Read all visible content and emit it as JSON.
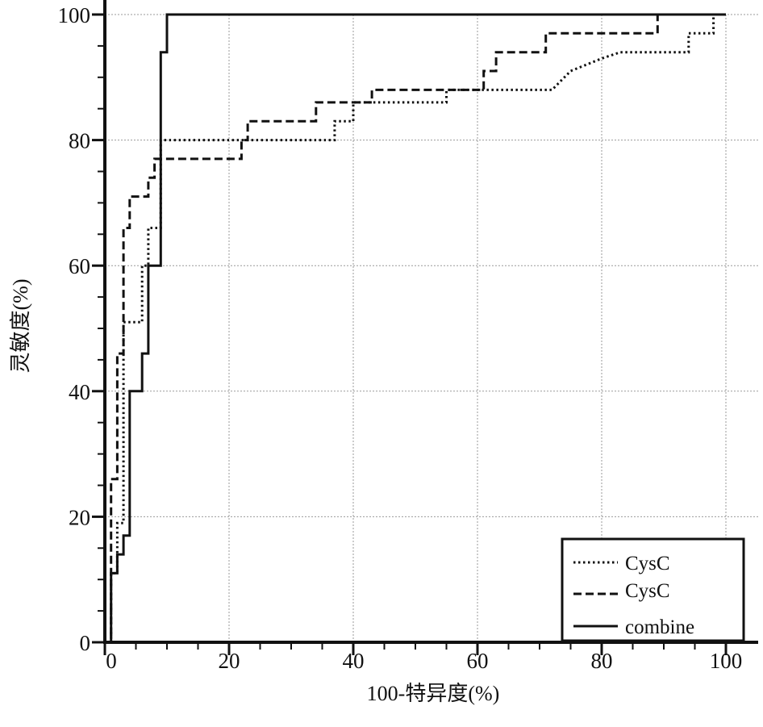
{
  "chart_data": {
    "type": "line",
    "xlabel": "100-特异度(%)",
    "ylabel": "灵敏度(%)",
    "xlim": [
      0,
      100
    ],
    "ylim": [
      0,
      100
    ],
    "x_ticks": [
      "0",
      "20",
      "40",
      "60",
      "80",
      "100"
    ],
    "y_ticks": [
      "0",
      "20",
      "40",
      "60",
      "80",
      "100"
    ],
    "grid": true,
    "legend_position": "bottom-right",
    "series": [
      {
        "name": "CysC",
        "line_style": "dotted",
        "points": [
          [
            0,
            0
          ],
          [
            1,
            0
          ],
          [
            1,
            11
          ],
          [
            2,
            11
          ],
          [
            2,
            19
          ],
          [
            3,
            19
          ],
          [
            3,
            20
          ],
          [
            3,
            51
          ],
          [
            6,
            51
          ],
          [
            6,
            60
          ],
          [
            7,
            60
          ],
          [
            7,
            66
          ],
          [
            9,
            66
          ],
          [
            9,
            80
          ],
          [
            37,
            80
          ],
          [
            37,
            83
          ],
          [
            40,
            83
          ],
          [
            40,
            86
          ],
          [
            55,
            86
          ],
          [
            55,
            88
          ],
          [
            72,
            88
          ],
          [
            75,
            91
          ],
          [
            80,
            93
          ],
          [
            83,
            94
          ],
          [
            94,
            94
          ],
          [
            94,
            97
          ],
          [
            98,
            97
          ],
          [
            98,
            100
          ],
          [
            100,
            100
          ]
        ]
      },
      {
        "name": "CysC",
        "line_style": "dashed",
        "points": [
          [
            0,
            0
          ],
          [
            1,
            0
          ],
          [
            1,
            26
          ],
          [
            2,
            26
          ],
          [
            2,
            46
          ],
          [
            3,
            46
          ],
          [
            3,
            66
          ],
          [
            4,
            66
          ],
          [
            4,
            71
          ],
          [
            7,
            71
          ],
          [
            7,
            74
          ],
          [
            8,
            74
          ],
          [
            8,
            77
          ],
          [
            22,
            77
          ],
          [
            22,
            80
          ],
          [
            23,
            80
          ],
          [
            23,
            83
          ],
          [
            34,
            83
          ],
          [
            34,
            86
          ],
          [
            43,
            86
          ],
          [
            43,
            88
          ],
          [
            61,
            88
          ],
          [
            61,
            91
          ],
          [
            63,
            91
          ],
          [
            63,
            94
          ],
          [
            71,
            94
          ],
          [
            71,
            97
          ],
          [
            89,
            97
          ],
          [
            89,
            100
          ],
          [
            100,
            100
          ]
        ]
      },
      {
        "name": "combine",
        "line_style": "solid",
        "points": [
          [
            0,
            0
          ],
          [
            1,
            0
          ],
          [
            1,
            11
          ],
          [
            2,
            11
          ],
          [
            2,
            14
          ],
          [
            3,
            14
          ],
          [
            3,
            17
          ],
          [
            4,
            17
          ],
          [
            4,
            40
          ],
          [
            6,
            40
          ],
          [
            6,
            46
          ],
          [
            7,
            46
          ],
          [
            7,
            60
          ],
          [
            9,
            60
          ],
          [
            9,
            94
          ],
          [
            10,
            94
          ],
          [
            10,
            100
          ],
          [
            100,
            100
          ]
        ]
      }
    ]
  }
}
